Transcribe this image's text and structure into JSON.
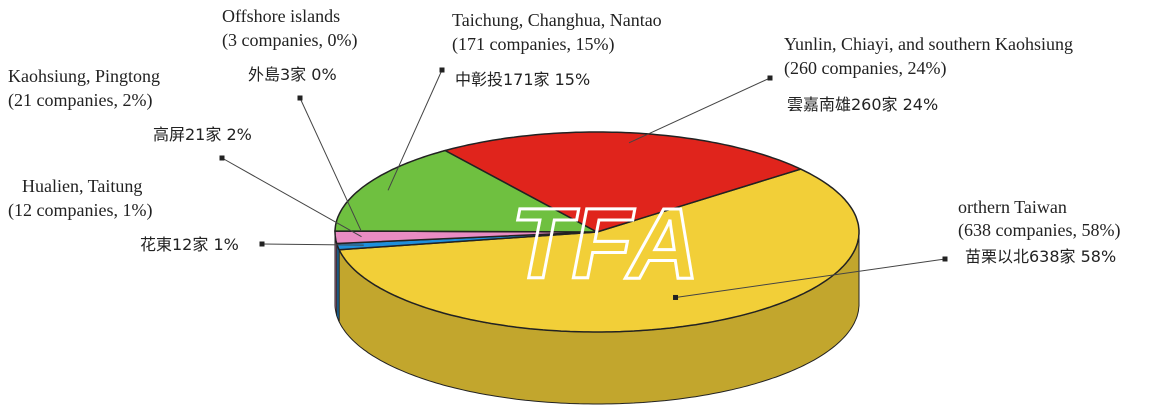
{
  "chart_data": {
    "type": "pie",
    "categories": [
      "orthern Taiwan",
      "Hualien, Taitung",
      "Kaohsiung, Pingtong",
      "Offshore islands",
      "Taichung, Changhua, Nantao",
      "Yunlin, Chiayi, and southern Kaohsiung"
    ],
    "values": [
      58,
      1,
      2,
      0,
      15,
      24
    ],
    "value_labels": [
      "(638 companies, 58%)",
      "(12 companies, 1%)",
      "(21 companies, 2%)",
      "(3 companies, 0%)",
      "(171 companies, 15%)",
      "(260 companies, 24%)"
    ],
    "labels_zh": [
      "苗栗以北638家 58%",
      "花東12家 1%",
      "高屏21家 2%",
      "外島3家 0%",
      "中彰投171家 15%",
      "雲嘉南雄260家 24%"
    ],
    "colors": [
      "#f2cf38",
      "#1f8fdc",
      "#e98cc3",
      "#d8d8d8",
      "#6fc040",
      "#e0241c"
    ],
    "watermark": "TFA"
  }
}
